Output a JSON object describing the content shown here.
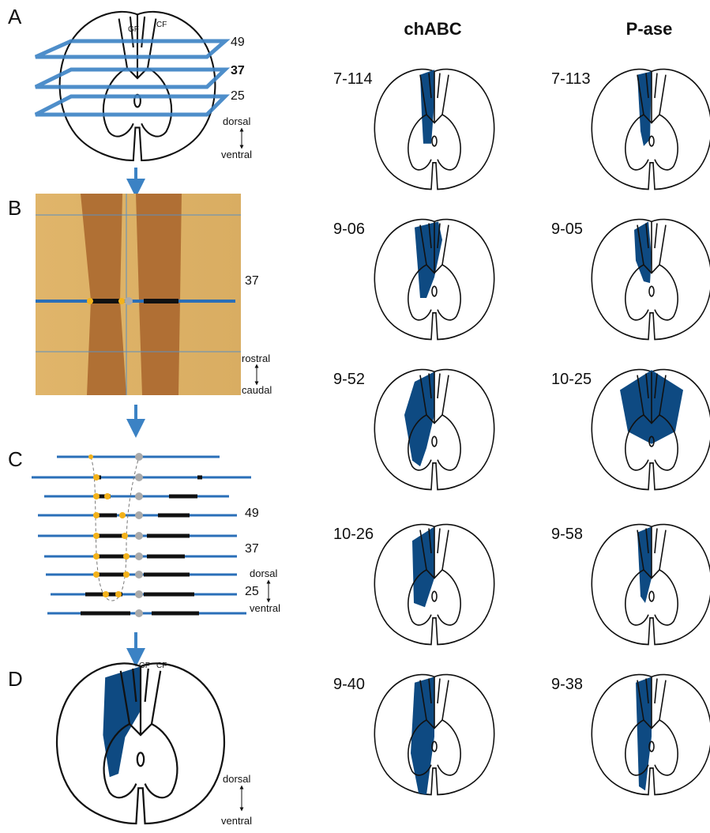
{
  "panel_a": {
    "label": "A",
    "gf": "GF",
    "cf": "CF",
    "levels": [
      "49",
      "37",
      "25"
    ],
    "dorsal": "dorsal",
    "ventral": "ventral"
  },
  "panel_b": {
    "label": "B",
    "level": "37",
    "rostral": "rostral",
    "caudal": "caudal"
  },
  "panel_c": {
    "label": "C",
    "levels": [
      "49",
      "37",
      "25"
    ],
    "dorsal": "dorsal",
    "ventral": "ventral"
  },
  "panel_d": {
    "label": "D",
    "gf": "GF",
    "cf": "CF",
    "dorsal": "dorsal",
    "ventral": "ventral"
  },
  "columns": [
    {
      "title": "chABC",
      "animals": [
        "7-114",
        "9-06",
        "9-52",
        "10-26",
        "9-40"
      ]
    },
    {
      "title": "P-ase",
      "animals": [
        "7-113",
        "9-05",
        "10-25",
        "9-58",
        "9-38"
      ]
    }
  ]
}
